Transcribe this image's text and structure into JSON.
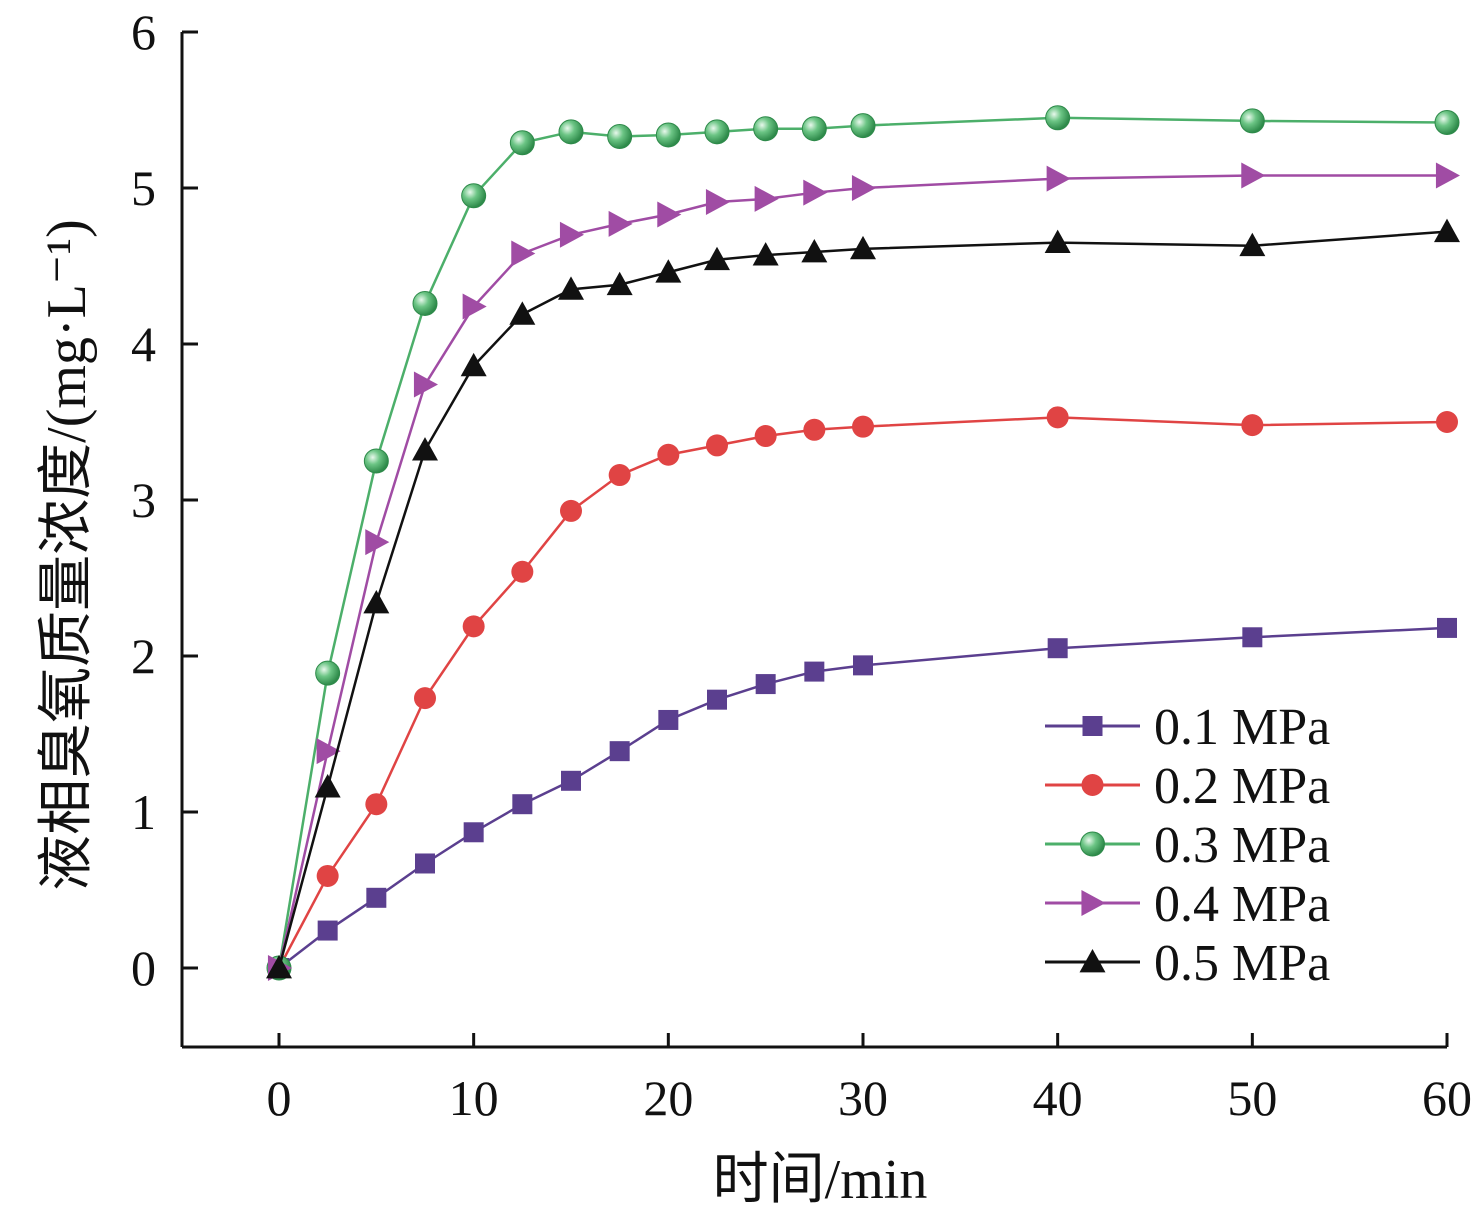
{
  "chart_data": {
    "type": "line",
    "xlabel": "时间/min",
    "ylabel": "液相臭氧质量浓度/(mg·L⁻¹)",
    "xlim": [
      -5,
      60.5
    ],
    "ylim": [
      -0.5,
      6
    ],
    "xticks": [
      0,
      10,
      20,
      30,
      40,
      50,
      60
    ],
    "yticks": [
      0,
      1,
      2,
      3,
      4,
      5,
      6
    ],
    "grid": false,
    "legend_position": "bottom-right",
    "series": [
      {
        "name": "0.1 MPa",
        "color": "#5b3f8f",
        "marker": "square",
        "x": [
          0,
          2.5,
          5,
          7.5,
          10,
          12.5,
          15,
          17.5,
          20,
          22.5,
          25,
          27.5,
          30,
          40,
          50,
          60
        ],
        "y": [
          0,
          0.24,
          0.45,
          0.67,
          0.87,
          1.05,
          1.2,
          1.39,
          1.59,
          1.72,
          1.82,
          1.9,
          1.94,
          2.05,
          2.12,
          2.18
        ]
      },
      {
        "name": "0.2 MPa",
        "color": "#e04444",
        "marker": "circle",
        "x": [
          0,
          2.5,
          5,
          7.5,
          10,
          12.5,
          15,
          17.5,
          20,
          22.5,
          25,
          27.5,
          30,
          40,
          50,
          60
        ],
        "y": [
          0,
          0.59,
          1.05,
          1.73,
          2.19,
          2.54,
          2.93,
          3.16,
          3.29,
          3.35,
          3.41,
          3.45,
          3.47,
          3.53,
          3.48,
          3.5
        ]
      },
      {
        "name": "0.3 MPa",
        "color": "#4caf6a",
        "marker": "sphere",
        "x": [
          0,
          2.5,
          5,
          7.5,
          10,
          12.5,
          15,
          17.5,
          20,
          22.5,
          25,
          27.5,
          30,
          40,
          50,
          60
        ],
        "y": [
          0,
          1.89,
          3.25,
          4.26,
          4.95,
          5.29,
          5.36,
          5.33,
          5.34,
          5.36,
          5.38,
          5.38,
          5.4,
          5.45,
          5.43,
          5.42
        ]
      },
      {
        "name": "0.4 MPa",
        "color": "#a04ca4",
        "marker": "triangle-right",
        "x": [
          0,
          2.5,
          5,
          7.5,
          10,
          12.5,
          15,
          17.5,
          20,
          22.5,
          25,
          27.5,
          30,
          40,
          50,
          60
        ],
        "y": [
          0,
          1.39,
          2.73,
          3.74,
          4.24,
          4.58,
          4.7,
          4.77,
          4.83,
          4.91,
          4.93,
          4.97,
          5.0,
          5.06,
          5.08,
          5.08
        ]
      },
      {
        "name": "0.5 MPa",
        "color": "#111111",
        "marker": "triangle-up",
        "x": [
          0,
          2.5,
          5,
          7.5,
          10,
          12.5,
          15,
          17.5,
          20,
          22.5,
          25,
          27.5,
          30,
          40,
          50,
          60
        ],
        "y": [
          0,
          1.16,
          2.34,
          3.32,
          3.86,
          4.19,
          4.35,
          4.38,
          4.46,
          4.54,
          4.57,
          4.59,
          4.61,
          4.65,
          4.63,
          4.72
        ]
      }
    ]
  }
}
